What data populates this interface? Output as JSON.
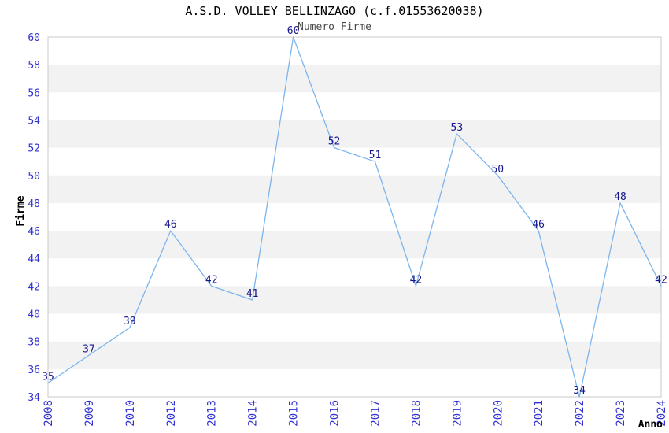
{
  "chart_data": {
    "type": "line",
    "title": "A.S.D. VOLLEY BELLINZAGO (c.f.01553620038)",
    "subtitle": "Numero Firme",
    "xlabel": "Anno",
    "ylabel": "Firme",
    "categories": [
      "2008",
      "2009",
      "2010",
      "2012",
      "2013",
      "2014",
      "2015",
      "2016",
      "2017",
      "2018",
      "2019",
      "2020",
      "2021",
      "2022",
      "2023",
      "2024"
    ],
    "values": [
      35,
      37,
      39,
      46,
      42,
      41,
      60,
      52,
      51,
      42,
      53,
      50,
      46,
      34,
      48,
      42
    ],
    "ylim": [
      34,
      60
    ],
    "ytick_step": 2,
    "grid": "alternating-horizontal-bands",
    "legend_position": "none",
    "data_labels_visible": true,
    "colors": {
      "line": "#7cb5ec",
      "data_label": "#15158c",
      "tick_label": "#3232d1",
      "band": "#f2f2f2",
      "plot_border": "#c9c9c9",
      "title": "#000000",
      "subtitle": "#4a4a4a",
      "axis_title": "#000000",
      "background": "#ffffff"
    }
  }
}
